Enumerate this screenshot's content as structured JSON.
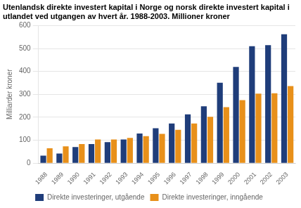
{
  "chart_data": {
    "type": "bar",
    "title": "Utenlandsk direkte investert kapital i Norge og norsk direkte investert kapital i utlandet ved utgangen av hvert år. 1988-2003. Millioner kroner",
    "ylabel": "Milliarder kroner",
    "categories": [
      "1988",
      "1989",
      "1990",
      "1991",
      "1992",
      "1993",
      "1994",
      "1995",
      "1996",
      "1997",
      "1998",
      "1999",
      "2000",
      "2001",
      "2002",
      "2003"
    ],
    "series": [
      {
        "name": "Direkte investeringer, utgående",
        "color": "#1f3d7a",
        "values": [
          33,
          42,
          70,
          83,
          92,
          103,
          129,
          152,
          173,
          213,
          248,
          351,
          420,
          510,
          515,
          562
        ]
      },
      {
        "name": "Direkte investeringer, inngående",
        "color": "#e8901a",
        "values": [
          65,
          73,
          83,
          103,
          103,
          110,
          118,
          128,
          145,
          173,
          202,
          244,
          275,
          303,
          305,
          336
        ]
      }
    ],
    "ylim": [
      0,
      600
    ],
    "yticks": [
      0,
      100,
      200,
      300,
      400,
      500,
      600
    ],
    "grid": true,
    "legend": "bottom"
  }
}
